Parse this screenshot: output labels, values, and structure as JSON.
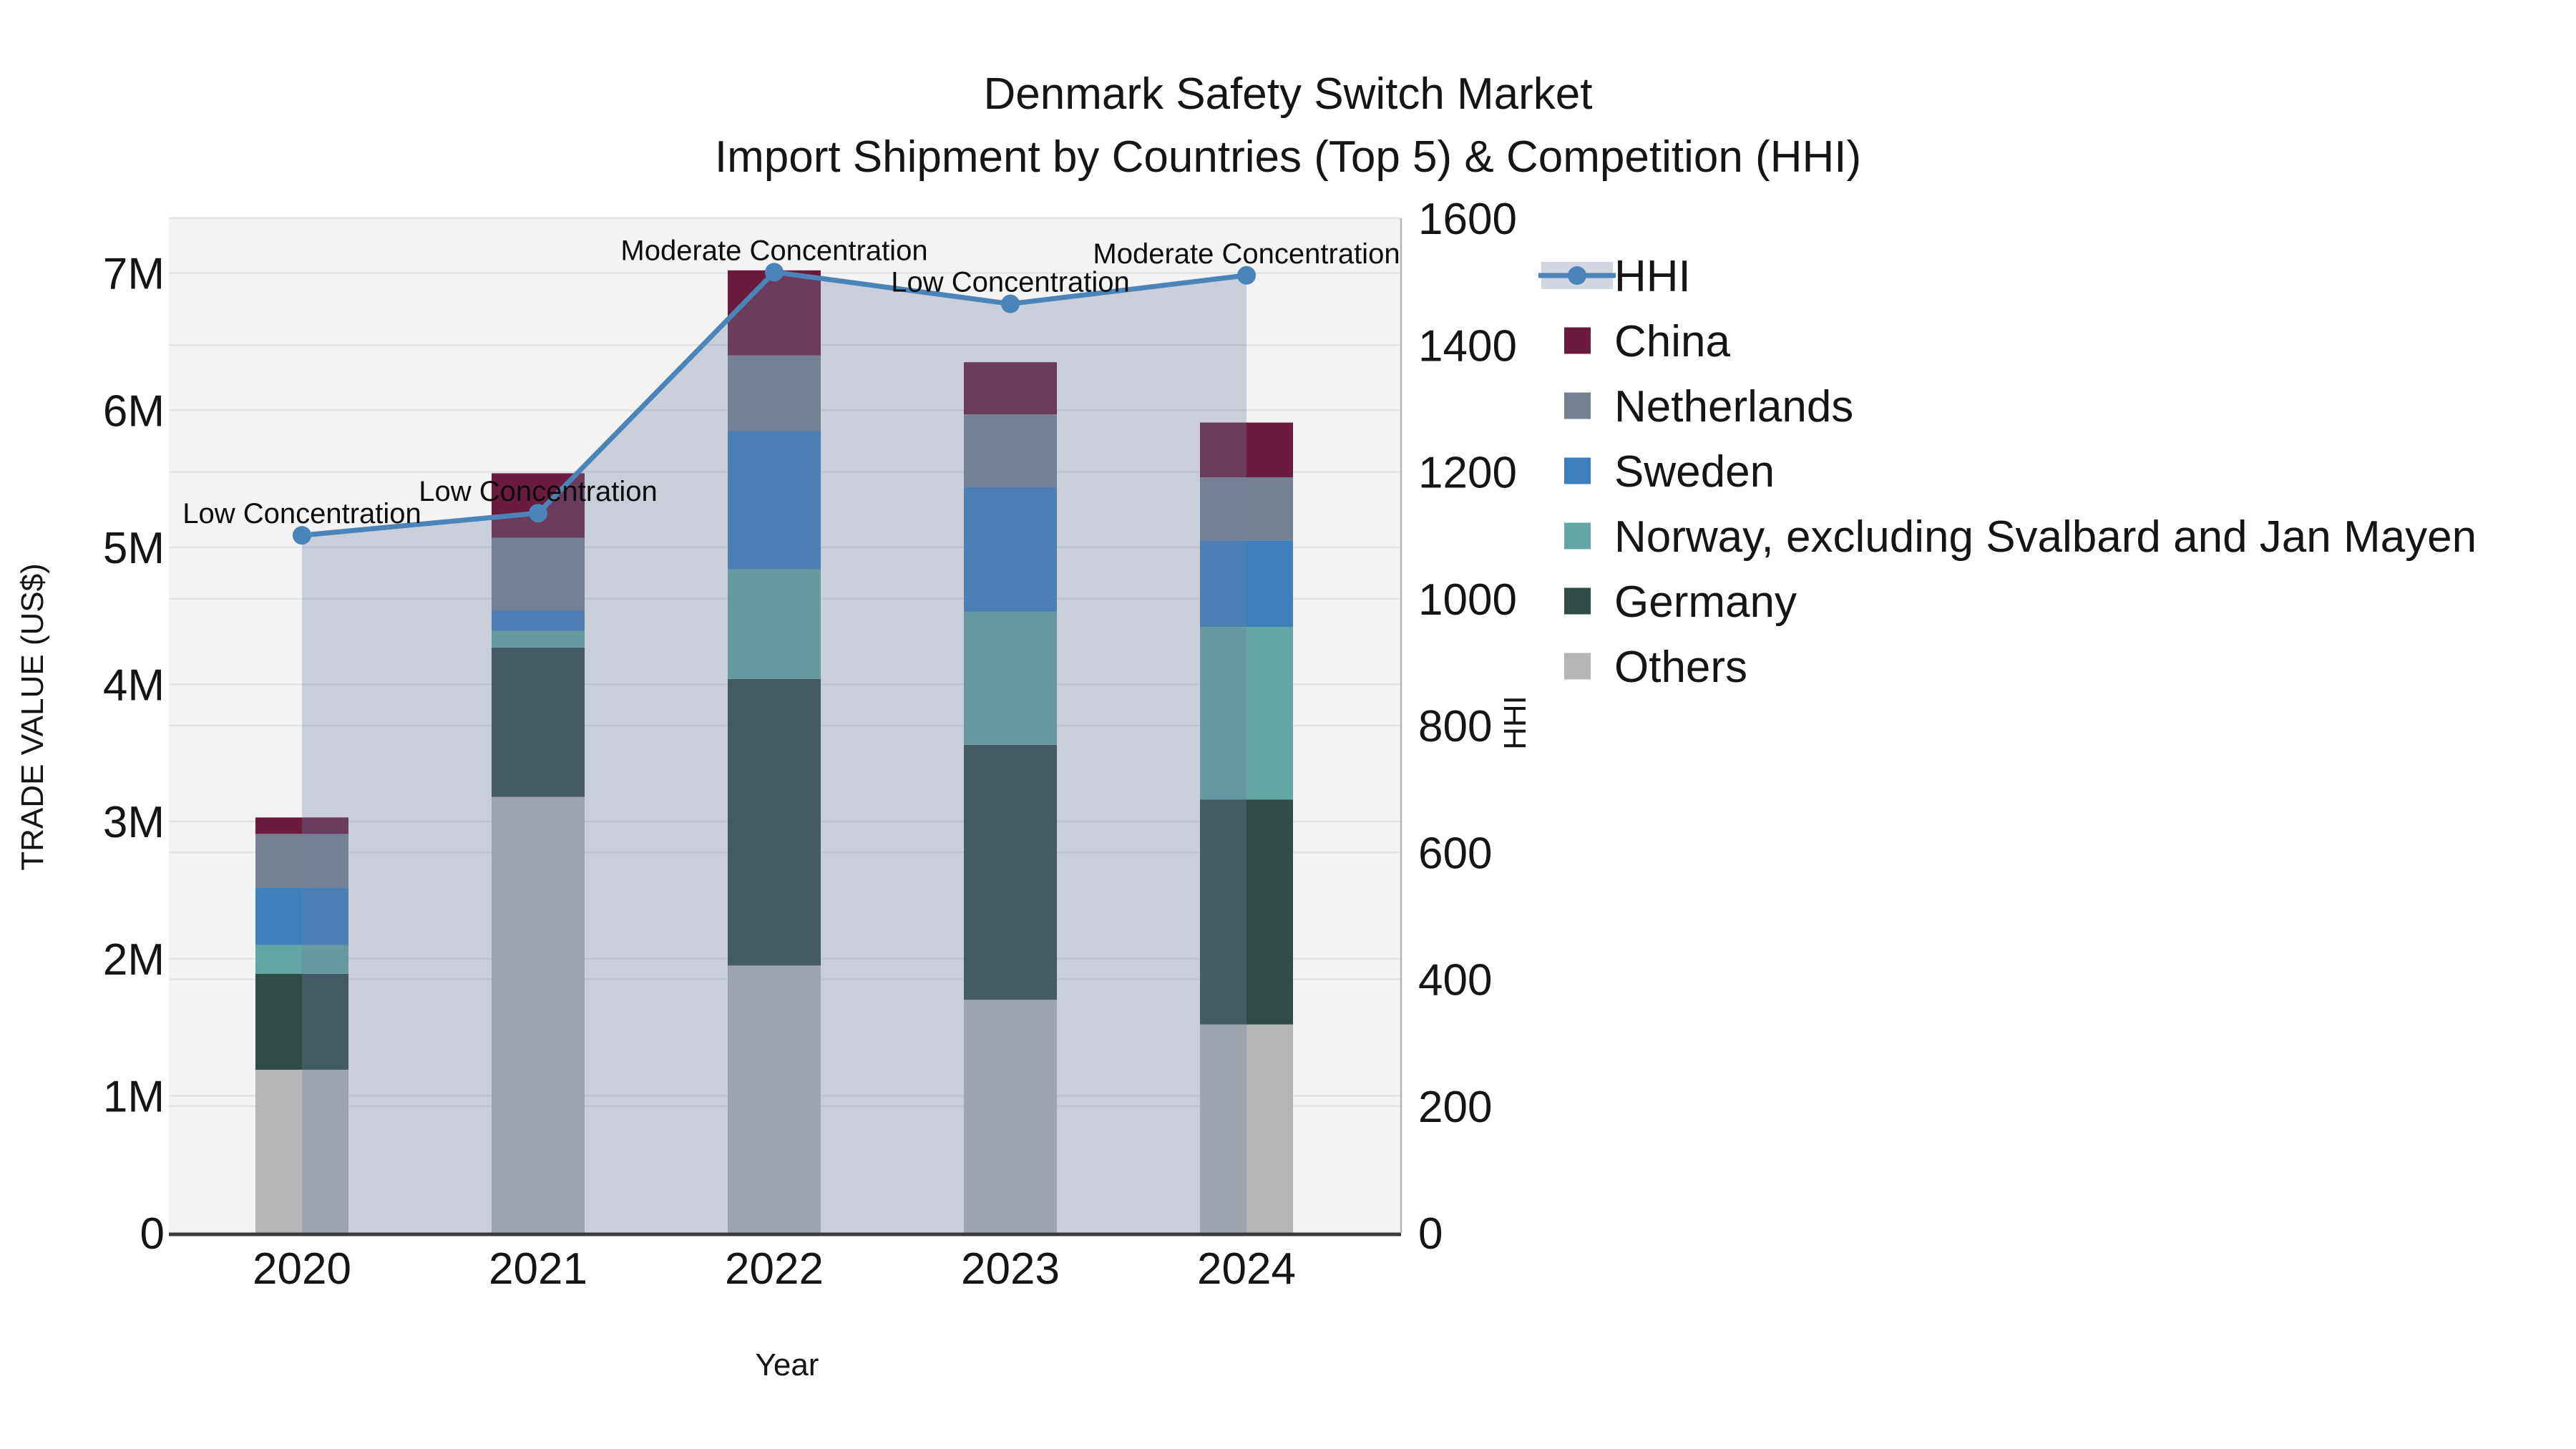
{
  "title": {
    "line1": "Denmark Safety Switch Market",
    "line2": "Import Shipment by Countries (Top 5) & Competition (HHI)"
  },
  "axes": {
    "x": {
      "label": "Year",
      "tick_labels": [
        "2020",
        "2021",
        "2022",
        "2023",
        "2024"
      ]
    },
    "y_left": {
      "label": "TRADE VALUE (US$)",
      "unit": "million US$",
      "range_millions": [
        0,
        7.4
      ],
      "ticks": [
        {
          "label": "0",
          "value": 0
        },
        {
          "label": "1M",
          "value": 1
        },
        {
          "label": "2M",
          "value": 2
        },
        {
          "label": "3M",
          "value": 3
        },
        {
          "label": "4M",
          "value": 4
        },
        {
          "label": "5M",
          "value": 5
        },
        {
          "label": "6M",
          "value": 6
        },
        {
          "label": "7M",
          "value": 7
        }
      ]
    },
    "y_right": {
      "label": "HHI",
      "range": [
        0,
        1600
      ],
      "ticks": [
        {
          "label": "0",
          "value": 0
        },
        {
          "label": "200",
          "value": 200
        },
        {
          "label": "400",
          "value": 400
        },
        {
          "label": "600",
          "value": 600
        },
        {
          "label": "800",
          "value": 800
        },
        {
          "label": "1000",
          "value": 1000
        },
        {
          "label": "1200",
          "value": 1200
        },
        {
          "label": "1400",
          "value": 1400
        },
        {
          "label": "1600",
          "value": 1600
        }
      ]
    }
  },
  "legend": {
    "items": [
      {
        "label": "HHI",
        "swatch": "line-marker",
        "color": "#4A84B8",
        "fill": "#D1D6E0"
      },
      {
        "label": "China",
        "swatch": "square",
        "color": "#6B1C3E"
      },
      {
        "label": "Netherlands",
        "swatch": "square",
        "color": "#76818F"
      },
      {
        "label": "Sweden",
        "swatch": "square",
        "color": "#3F7FBE"
      },
      {
        "label": "Norway, excluding Svalbard and Jan Mayen",
        "swatch": "square",
        "color": "#63A6A3"
      },
      {
        "label": "Germany",
        "swatch": "square",
        "color": "#2F4C47"
      },
      {
        "label": "Others",
        "swatch": "square",
        "color": "#B4B5B4"
      }
    ]
  },
  "chart_data": {
    "type": "combo: stacked bar (left axis) + line with area fill (right axis)",
    "categories": [
      "2020",
      "2021",
      "2022",
      "2023",
      "2024"
    ],
    "bar_unit": "million US$",
    "bar_stack_order": "bottom to top as listed",
    "bar_series": [
      {
        "name": "Others",
        "color": "#B4B5B4",
        "values": [
          1.19,
          3.18,
          1.95,
          1.7,
          1.52
        ]
      },
      {
        "name": "Germany",
        "color": "#2F4C47",
        "values": [
          0.7,
          1.09,
          2.09,
          1.86,
          1.64
        ]
      },
      {
        "name": "Norway, excluding Svalbard and Jan Mayen",
        "color": "#63A6A3",
        "values": [
          0.21,
          0.12,
          0.8,
          0.97,
          1.26
        ]
      },
      {
        "name": "Sweden",
        "color": "#3F7FBE",
        "values": [
          0.42,
          0.15,
          1.01,
          0.91,
          0.63
        ]
      },
      {
        "name": "Netherlands",
        "color": "#76818F",
        "values": [
          0.39,
          0.53,
          0.55,
          0.53,
          0.46
        ]
      },
      {
        "name": "China",
        "color": "#6B1C3E",
        "values": [
          0.12,
          0.47,
          0.62,
          0.38,
          0.4
        ]
      }
    ],
    "bar_totals_millions": [
      3.03,
      5.54,
      7.02,
      6.35,
      5.91
    ],
    "line_series": {
      "name": "HHI",
      "axis": "right",
      "color": "#4A84B8",
      "area_fill": "rgba(112,128,160,0.32)",
      "values": [
        1100,
        1135,
        1515,
        1465,
        1510
      ]
    },
    "annotations": [
      {
        "text": "Low Concentration",
        "category": "2020"
      },
      {
        "text": "Low Concentration",
        "category": "2021"
      },
      {
        "text": "Moderate Concentration",
        "category": "2022"
      },
      {
        "text": "Low Concentration",
        "category": "2023"
      },
      {
        "text": "Moderate Concentration",
        "category": "2024"
      }
    ],
    "legend_position": "outside upper right",
    "grid": true,
    "plot_background": "#F3F3F4"
  }
}
